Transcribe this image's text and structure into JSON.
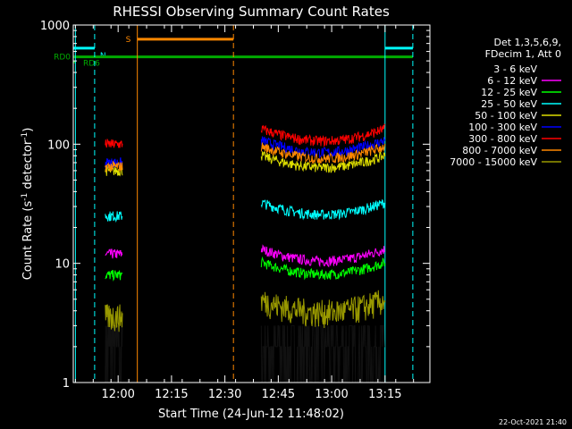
{
  "chart_data": {
    "type": "line",
    "title": "RHESSI Observing Summary Count Rates",
    "xlabel": "Start Time (24-Jun-12 11:48:02)",
    "ylabel_prefix": "Count Rate (s",
    "ylabel_sup1": "-1",
    "ylabel_middle": " detector",
    "ylabel_sup2": "-1",
    "ylabel_suffix": ")",
    "yscale": "log",
    "ylim": [
      1,
      1000
    ],
    "xlim": [
      11.79,
      13.46
    ],
    "xticks": [
      {
        "value": 12.0,
        "label": "12:00"
      },
      {
        "value": 12.25,
        "label": "12:15"
      },
      {
        "value": 12.5,
        "label": "12:30"
      },
      {
        "value": 12.75,
        "label": "12:45"
      },
      {
        "value": 13.0,
        "label": "13:00"
      },
      {
        "value": 13.25,
        "label": "13:15"
      }
    ],
    "yticks": [
      {
        "value": 1,
        "label": "1"
      },
      {
        "value": 10,
        "label": "10"
      },
      {
        "value": 100,
        "label": "100"
      },
      {
        "value": 1000,
        "label": "1000"
      }
    ],
    "info_lines": [
      "Det 1,3,5,6,9,",
      "FDecim 1, Att 0"
    ],
    "series": [
      {
        "name": "3 - 6 keV",
        "color": "#000000",
        "segments": [
          [
            11.94,
            12.02,
            2
          ],
          [
            12.67,
            13.25,
            2
          ]
        ]
      },
      {
        "name": "6 - 12 keV",
        "color": "#ff00ff",
        "segments": [
          [
            11.94,
            12.02,
            12
          ],
          [
            12.67,
            13.25,
            11
          ]
        ]
      },
      {
        "name": "12 - 25 keV",
        "color": "#00ff00",
        "segments": [
          [
            11.94,
            12.02,
            8
          ],
          [
            12.67,
            13.25,
            8.5
          ]
        ]
      },
      {
        "name": "25 - 50 keV",
        "color": "#00ffff",
        "segments": [
          [
            11.94,
            12.02,
            25
          ],
          [
            12.67,
            13.25,
            27
          ]
        ]
      },
      {
        "name": "50 - 100 keV",
        "color": "#dddd00",
        "segments": [
          [
            11.94,
            12.02,
            60
          ],
          [
            12.67,
            13.25,
            67
          ]
        ]
      },
      {
        "name": "100 - 300 keV",
        "color": "#0000ff",
        "segments": [
          [
            11.94,
            12.02,
            70
          ],
          [
            12.67,
            13.25,
            90
          ]
        ]
      },
      {
        "name": "300 - 800 keV",
        "color": "#ff0000",
        "segments": [
          [
            11.94,
            12.02,
            100
          ],
          [
            12.67,
            13.25,
            112
          ]
        ]
      },
      {
        "name": "800 - 7000 keV",
        "color": "#ff8800",
        "segments": [
          [
            11.94,
            12.02,
            65
          ],
          [
            12.67,
            13.25,
            80
          ]
        ]
      },
      {
        "name": "7000 - 15000 keV",
        "color": "#999900",
        "segments": [
          [
            11.94,
            12.02,
            3.5
          ],
          [
            12.67,
            13.25,
            4
          ]
        ]
      }
    ],
    "flags": [
      {
        "label": "N",
        "color": "#00ffff",
        "level": 640,
        "intervals": [
          [
            11.79,
            11.89
          ],
          [
            13.25,
            13.38
          ]
        ]
      },
      {
        "label": "S",
        "color": "#ff8800",
        "level": 760,
        "intervals": [
          [
            12.09,
            12.54
          ]
        ]
      },
      {
        "label": "RD0",
        "color": "#00aa00",
        "level": 540,
        "intervals": [
          [
            11.79,
            13.38
          ]
        ]
      },
      {
        "label": "RD6",
        "color": "#00aa00",
        "level": 490,
        "intervals": [
          [
            11.79,
            11.8
          ]
        ]
      }
    ],
    "vlines": [
      {
        "x": 11.8,
        "color": "#00ffff",
        "style": "solid"
      },
      {
        "x": 11.89,
        "color": "#00ffff",
        "style": "dashed"
      },
      {
        "x": 12.09,
        "color": "#ff8800",
        "style": "solid"
      },
      {
        "x": 12.54,
        "color": "#ff8800",
        "style": "dashed"
      },
      {
        "x": 13.25,
        "color": "#00ffff",
        "style": "solid"
      },
      {
        "x": 13.38,
        "color": "#00ffff",
        "style": "dashed"
      }
    ],
    "timestamp": "22-Oct-2021 21:40"
  }
}
